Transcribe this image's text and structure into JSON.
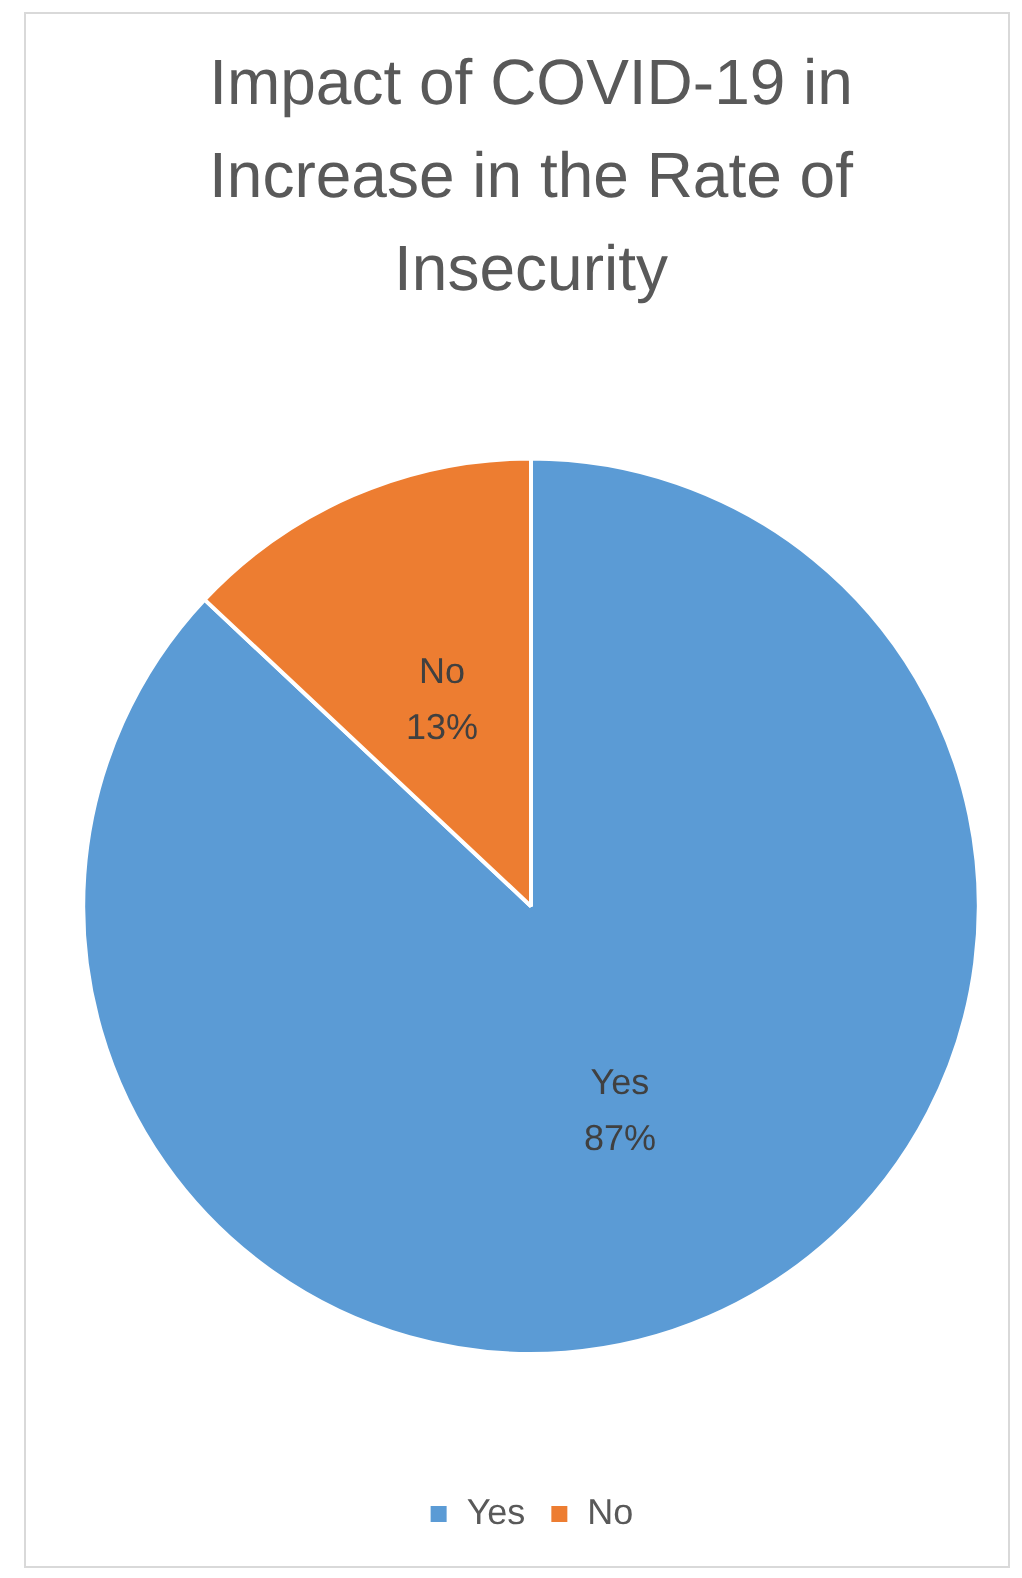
{
  "chart_data": {
    "type": "pie",
    "title": "Impact of COVID-19 in Increase in the Rate of Insecurity",
    "categories": [
      "Yes",
      "No"
    ],
    "values": [
      87,
      13
    ],
    "colors": [
      "#5b9bd5",
      "#ed7d31"
    ],
    "value_labels": [
      "87%",
      "13%"
    ],
    "legend": "bottom"
  }
}
